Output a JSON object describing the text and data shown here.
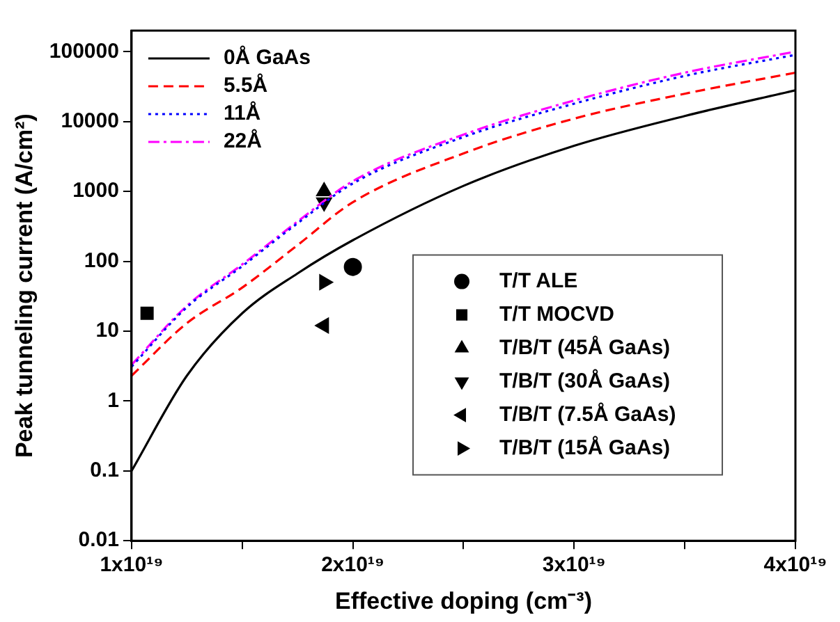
{
  "chart_data": {
    "type": "line",
    "xlabel": "Effective doping (cm⁻³)",
    "ylabel": "Peak tunneling current (A/cm²)",
    "log": "y",
    "xlim": [
      1e+19,
      4e+19
    ],
    "ylim": [
      0.01,
      200000
    ],
    "xticks": [
      {
        "value": 1e+19,
        "label": "1x10¹⁹"
      },
      {
        "value": 1.5e+19,
        "label": null
      },
      {
        "value": 2e+19,
        "label": "2x10¹⁹"
      },
      {
        "value": 2.5e+19,
        "label": null
      },
      {
        "value": 3e+19,
        "label": "3x10¹⁹"
      },
      {
        "value": 3.5e+19,
        "label": null
      },
      {
        "value": 4e+19,
        "label": "4x10¹⁹"
      }
    ],
    "yticks": [
      0.01,
      0.1,
      1,
      10,
      100,
      1000,
      10000,
      100000
    ],
    "grid": false,
    "legend": "top left",
    "series": [
      {
        "name": "0Å GaAs",
        "color": "#000000",
        "line_style": "solid",
        "x": [
          1e+19,
          1.25e+19,
          1.5e+19,
          1.75e+19,
          2e+19,
          2.5e+19,
          3e+19,
          3.5e+19,
          4e+19
        ],
        "values": [
          0.1,
          2.3,
          18,
          67,
          200,
          1200,
          4500,
          12000,
          28000
        ]
      },
      {
        "name": "5.5Å",
        "color": "#ff0000",
        "line_style": "dashed",
        "x": [
          1e+19,
          1.25e+19,
          1.5e+19,
          1.75e+19,
          2e+19,
          2.5e+19,
          3e+19,
          3.5e+19,
          4e+19
        ],
        "values": [
          2.3,
          13,
          42,
          170,
          700,
          3500,
          11000,
          25000,
          50000
        ]
      },
      {
        "name": "11Å",
        "color": "#0000ff",
        "line_style": "dotted",
        "x": [
          1e+19,
          1.25e+19,
          1.5e+19,
          1.75e+19,
          2e+19,
          2.5e+19,
          3e+19,
          3.5e+19,
          4e+19
        ],
        "values": [
          3.1,
          22,
          85,
          350,
          1300,
          6000,
          18000,
          45000,
          90000
        ]
      },
      {
        "name": "22Å",
        "color": "#ff00ff",
        "line_style": "dashdot",
        "x": [
          1e+19,
          1.25e+19,
          1.5e+19,
          1.75e+19,
          2e+19,
          2.5e+19,
          3e+19,
          3.5e+19,
          4e+19
        ],
        "values": [
          3.3,
          23,
          90,
          370,
          1400,
          6500,
          20000,
          50000,
          100000
        ]
      },
      {
        "name": "T/T ALE",
        "type": "scatter",
        "color": "#000000",
        "marker": "circle",
        "x": [
          2e+19
        ],
        "values": [
          83
        ]
      },
      {
        "name": "T/T MOCVD",
        "type": "scatter",
        "color": "#000000",
        "marker": "square",
        "x": [
          1.07e+19
        ],
        "values": [
          18
        ]
      },
      {
        "name": "T/B/T (45Å GaAs)",
        "type": "scatter",
        "color": "#000000",
        "marker": "triangle",
        "x": [
          1.87e+19
        ],
        "values": [
          1000
        ]
      },
      {
        "name": "T/B/T (30Å GaAs)",
        "type": "scatter",
        "color": "#000000",
        "marker": "triangle-down",
        "x": [
          1.87e+19
        ],
        "values": [
          700
        ]
      },
      {
        "name": "T/B/T (7.5Å GaAs)",
        "type": "scatter",
        "color": "#000000",
        "marker": "triangle-left",
        "x": [
          1.87e+19
        ],
        "values": [
          12
        ]
      },
      {
        "name": "T/B/T (15Å GaAs)",
        "type": "scatter",
        "color": "#000000",
        "marker": "triangle-right",
        "x": [
          1.87e+19
        ],
        "values": [
          50
        ]
      }
    ]
  }
}
